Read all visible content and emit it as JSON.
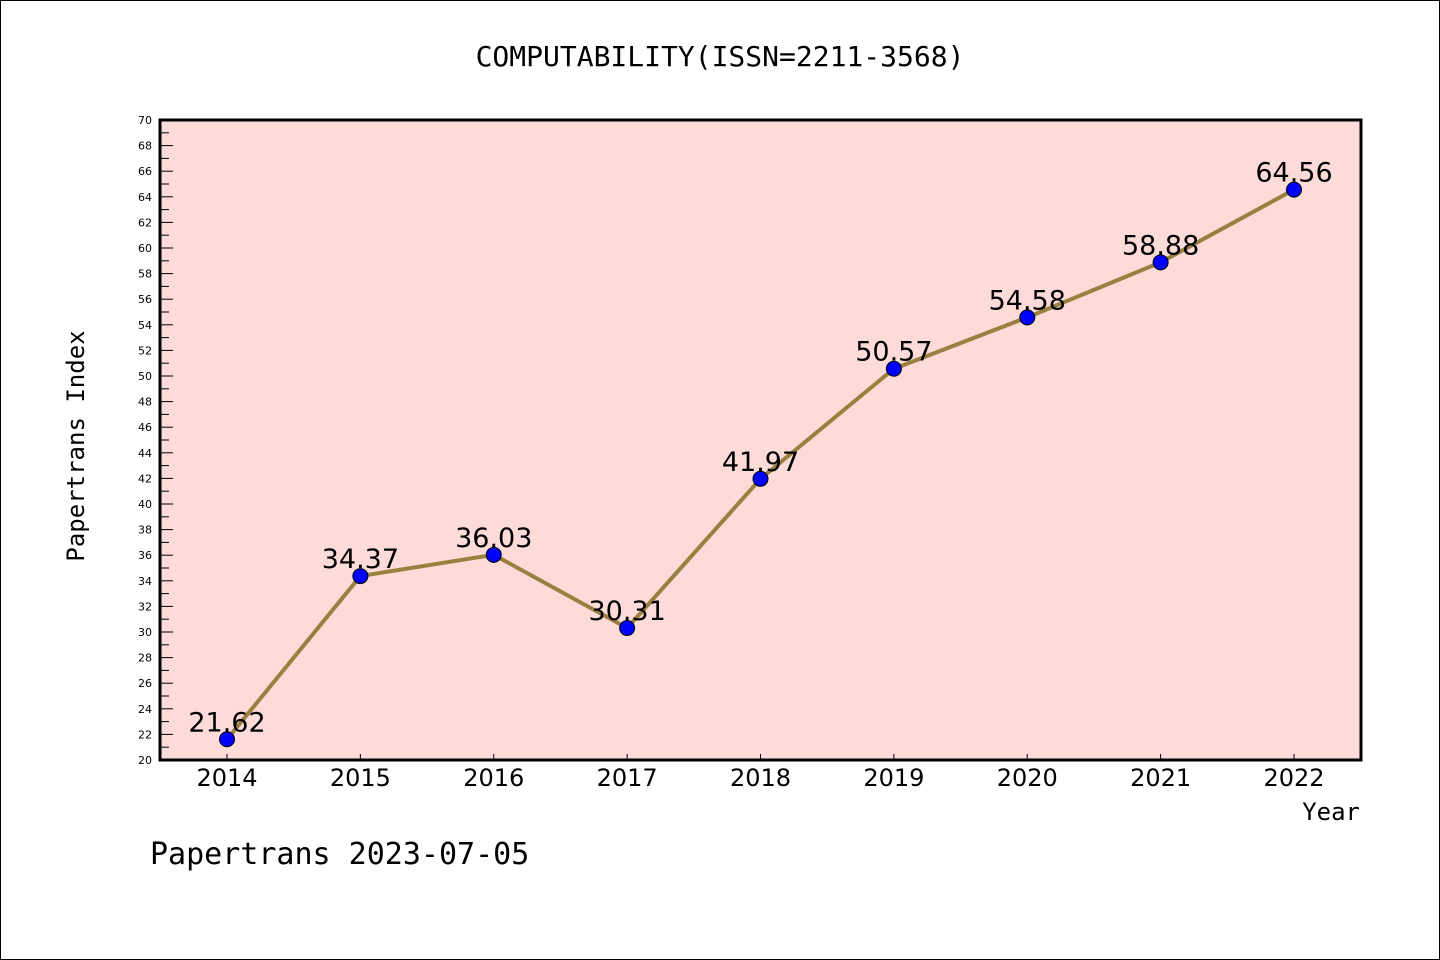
{
  "chart_data": {
    "type": "line",
    "title": "COMPUTABILITY(ISSN=2211-3568)",
    "xlabel": "Year",
    "ylabel": "Papertrans Index",
    "footer": "Papertrans 2023-07-05",
    "categories": [
      "2014",
      "2015",
      "2016",
      "2017",
      "2018",
      "2019",
      "2020",
      "2021",
      "2022"
    ],
    "series": [
      {
        "name": "Papertrans Index",
        "values": [
          21.62,
          34.37,
          36.03,
          30.31,
          41.97,
          50.57,
          54.58,
          58.88,
          64.56
        ],
        "labels": [
          "21.62",
          "34.37",
          "36.03",
          "30.31",
          "41.97",
          "50.57",
          "54.58",
          "58.88",
          "64.56"
        ]
      }
    ],
    "ylim": [
      20,
      70
    ],
    "yticks": [
      20,
      22,
      24,
      26,
      28,
      30,
      32,
      34,
      36,
      38,
      40,
      42,
      44,
      46,
      48,
      50,
      52,
      54,
      56,
      58,
      60,
      62,
      64,
      66,
      68,
      70
    ],
    "grid": false,
    "colors": {
      "plot_background": "#fddbd8",
      "line": "#9a8040",
      "marker": "#0000ff",
      "axis": "#000000"
    }
  }
}
